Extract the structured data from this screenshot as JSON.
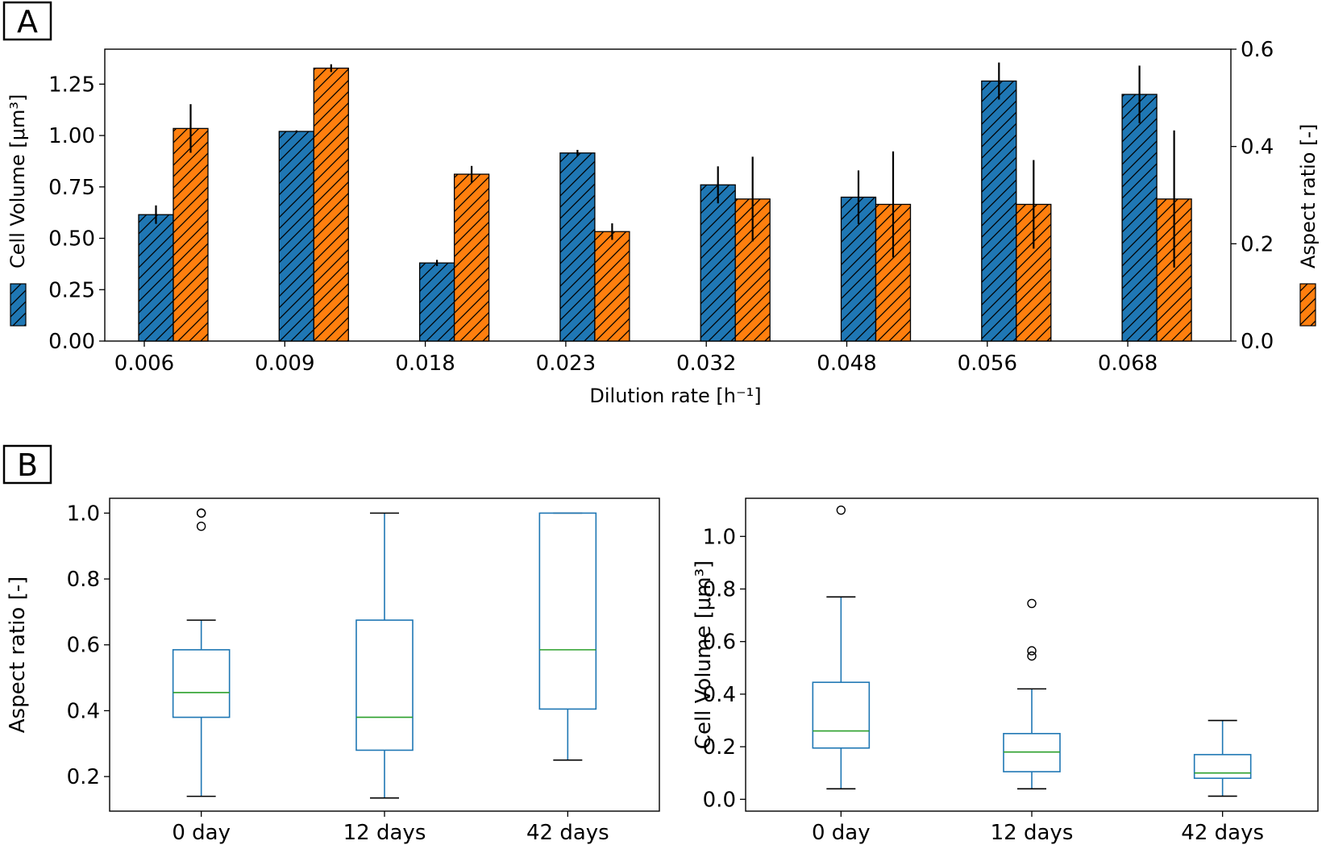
{
  "panels": {
    "a": {
      "label": "A"
    },
    "b": {
      "label": "B"
    }
  },
  "chart_data": [
    {
      "id": "A",
      "type": "bar",
      "xlabel": "Dilution rate [h⁻¹]",
      "ylabel_left": "Cell Volume [μm³]",
      "ylabel_right": "Aspect ratio  [-]",
      "categories": [
        "0.006",
        "0.009",
        "0.018",
        "0.023",
        "0.032",
        "0.048",
        "0.056",
        "0.068"
      ],
      "ylim_left": [
        0,
        1.42
      ],
      "yticks_left": [
        "0.00",
        "0.25",
        "0.50",
        "0.75",
        "1.00",
        "1.25"
      ],
      "ylim_right": [
        0,
        0.6
      ],
      "yticks_right": [
        "0.0",
        "0.2",
        "0.4",
        "0.6"
      ],
      "colors": {
        "cell_volume": "#1f77b4",
        "aspect_ratio": "#ff7f0e"
      },
      "series": [
        {
          "name": "Cell Volume",
          "axis": "left",
          "values": [
            0.615,
            1.02,
            0.38,
            0.915,
            0.76,
            0.7,
            1.265,
            1.2
          ],
          "errors": [
            0.045,
            0.005,
            0.015,
            0.015,
            0.09,
            0.13,
            0.09,
            0.14
          ]
        },
        {
          "name": "Aspect ratio",
          "axis": "right",
          "values": [
            0.437,
            0.561,
            0.343,
            0.225,
            0.292,
            0.281,
            0.281,
            0.292
          ],
          "errors": [
            0.05,
            0.008,
            0.017,
            0.017,
            0.087,
            0.109,
            0.091,
            0.141
          ]
        }
      ]
    },
    {
      "id": "B-left",
      "type": "box",
      "ylabel": "Aspect ratio [-]",
      "categories": [
        "0 day",
        "12 days",
        "42 days"
      ],
      "ylim": [
        0.095,
        1.045
      ],
      "yticks": [
        "0.2",
        "0.4",
        "0.6",
        "0.8",
        "1.0"
      ],
      "colors": {
        "box": "#1f77b4",
        "median": "#2ca02c"
      },
      "boxes": [
        {
          "whislo": 0.14,
          "q1": 0.38,
          "med": 0.455,
          "q3": 0.585,
          "whishi": 0.675,
          "fliers": [
            0.96,
            1.0,
            1.0
          ]
        },
        {
          "whislo": 0.135,
          "q1": 0.28,
          "med": 0.38,
          "q3": 0.675,
          "whishi": 1.0,
          "fliers": []
        },
        {
          "whislo": 0.25,
          "q1": 0.405,
          "med": 0.585,
          "q3": 1.0,
          "whishi": 1.0,
          "fliers": []
        }
      ]
    },
    {
      "id": "B-right",
      "type": "box",
      "ylabel": "Cell Volume [μm³]",
      "categories": [
        "0 day",
        "12 days",
        "42 days"
      ],
      "ylim": [
        -0.045,
        1.145
      ],
      "yticks": [
        "0.0",
        "0.2",
        "0.4",
        "0.6",
        "0.8",
        "1.0"
      ],
      "colors": {
        "box": "#1f77b4",
        "median": "#2ca02c"
      },
      "boxes": [
        {
          "whislo": 0.04,
          "q1": 0.195,
          "med": 0.26,
          "q3": 0.445,
          "whishi": 0.77,
          "fliers": [
            1.1
          ]
        },
        {
          "whislo": 0.04,
          "q1": 0.105,
          "med": 0.18,
          "q3": 0.25,
          "whishi": 0.42,
          "fliers": [
            0.545,
            0.565,
            0.745
          ]
        },
        {
          "whislo": 0.012,
          "q1": 0.08,
          "med": 0.1,
          "q3": 0.17,
          "whishi": 0.3,
          "fliers": []
        }
      ]
    }
  ]
}
